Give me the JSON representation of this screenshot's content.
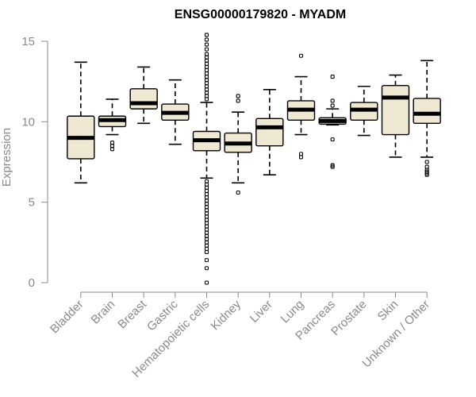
{
  "chart_data": {
    "type": "boxplot",
    "title": "ENSG00000179820 - MYADM",
    "xlabel": "",
    "ylabel": "Expression",
    "ylim": [
      0,
      15.5
    ],
    "yticks": [
      0,
      5,
      10,
      15
    ],
    "grid": false,
    "box_color": "#efe8d2",
    "categories": [
      "Bladder",
      "Brain",
      "Breast",
      "Gastric",
      "Hematopoietic cells",
      "Kidney",
      "Liver",
      "Lung",
      "Pancreas",
      "Prostate",
      "Skin",
      "Unknown / Other"
    ],
    "boxes": [
      {
        "whislo": 6.2,
        "q1": 7.7,
        "med": 9.0,
        "q3": 10.35,
        "whishi": 13.7,
        "fliers": []
      },
      {
        "whislo": 9.2,
        "q1": 9.7,
        "med": 10.1,
        "q3": 10.35,
        "whishi": 11.4,
        "fliers": [
          8.3,
          8.5,
          8.7
        ]
      },
      {
        "whislo": 9.9,
        "q1": 10.8,
        "med": 11.15,
        "q3": 12.05,
        "whishi": 13.4,
        "fliers": []
      },
      {
        "whislo": 8.6,
        "q1": 10.1,
        "med": 10.55,
        "q3": 11.1,
        "whishi": 12.6,
        "fliers": []
      },
      {
        "whislo": 6.5,
        "q1": 8.2,
        "med": 8.85,
        "q3": 9.4,
        "whishi": 11.2,
        "fliers": [
          15.4,
          15.1,
          14.8,
          14.5,
          14.2,
          14.0,
          13.8,
          13.6,
          13.4,
          13.2,
          13.0,
          12.8,
          12.6,
          12.4,
          12.2,
          12.0,
          11.8,
          11.6,
          11.4,
          6.3,
          6.1,
          5.9,
          5.7,
          5.5,
          5.3,
          5.1,
          4.9,
          4.7,
          4.5,
          4.3,
          4.1,
          3.9,
          3.7,
          3.5,
          3.3,
          3.1,
          2.9,
          2.7,
          2.5,
          2.3,
          2.1,
          1.9,
          1.4,
          0.9,
          0.0
        ]
      },
      {
        "whislo": 6.2,
        "q1": 8.1,
        "med": 8.65,
        "q3": 9.3,
        "whishi": 10.6,
        "fliers": [
          11.6,
          11.3,
          5.6
        ]
      },
      {
        "whislo": 6.7,
        "q1": 8.5,
        "med": 9.65,
        "q3": 10.2,
        "whishi": 12.0,
        "fliers": []
      },
      {
        "whislo": 9.2,
        "q1": 10.1,
        "med": 10.75,
        "q3": 11.3,
        "whishi": 12.8,
        "fliers": [
          14.1,
          8.0,
          7.8
        ]
      },
      {
        "whislo": 9.8,
        "q1": 9.85,
        "med": 10.05,
        "q3": 10.25,
        "whishi": 10.8,
        "fliers": [
          12.8,
          11.3,
          11.0,
          8.9,
          7.3,
          7.2
        ]
      },
      {
        "whislo": 9.15,
        "q1": 10.1,
        "med": 10.75,
        "q3": 11.2,
        "whishi": 12.2,
        "fliers": []
      },
      {
        "whislo": 7.8,
        "q1": 9.2,
        "med": 11.5,
        "q3": 12.25,
        "whishi": 12.9,
        "fliers": []
      },
      {
        "whislo": 7.8,
        "q1": 9.9,
        "med": 10.5,
        "q3": 11.45,
        "whishi": 13.8,
        "fliers": [
          7.5,
          7.2,
          7.0,
          6.9,
          6.8,
          6.7
        ]
      }
    ]
  }
}
